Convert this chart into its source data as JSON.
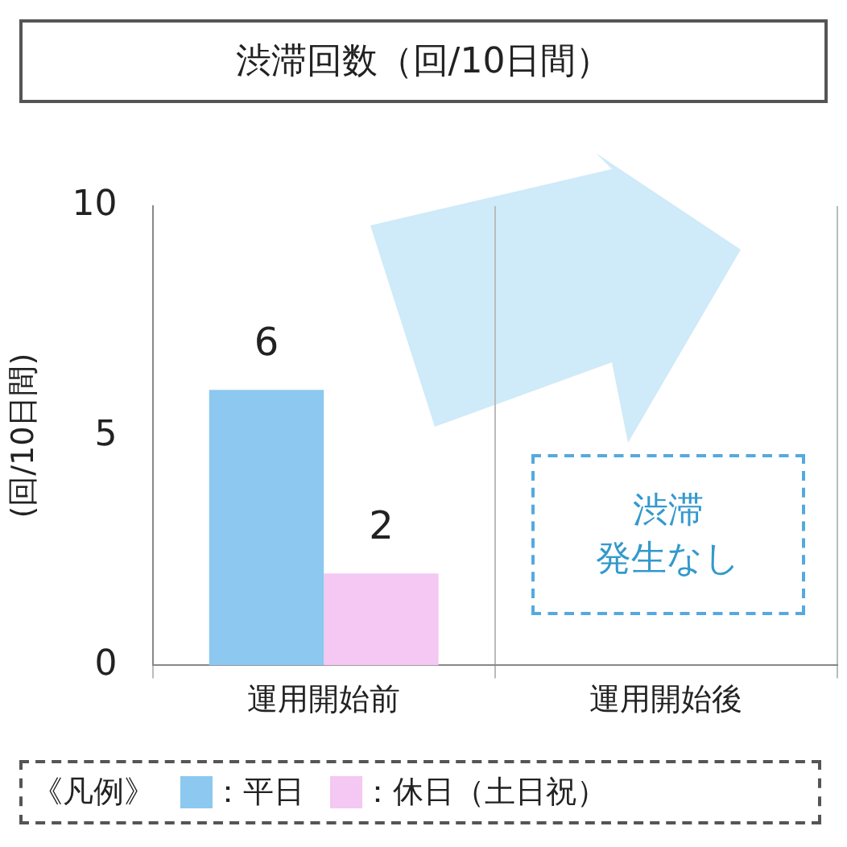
{
  "chart_data": {
    "type": "bar",
    "title": "渋滞回数（回/10日間）",
    "ylabel": "(回/10日間)",
    "legend_title": "《凡例》",
    "categories": [
      "運用開始前",
      "運用開始後"
    ],
    "series": [
      {
        "name": "：平日",
        "color": "#8cc8f0",
        "values": [
          6,
          0
        ],
        "value_labels": [
          "6",
          null
        ]
      },
      {
        "name": "：休日（土日祝）",
        "color": "#f4c8f2",
        "values": [
          2,
          0
        ],
        "value_labels": [
          "2",
          null
        ]
      }
    ],
    "ylim": [
      0,
      10
    ],
    "yticks": [
      0,
      5,
      10
    ],
    "grid": "x",
    "legend": "bottom",
    "annotations": [
      "渋滞",
      "発生なし"
    ]
  }
}
